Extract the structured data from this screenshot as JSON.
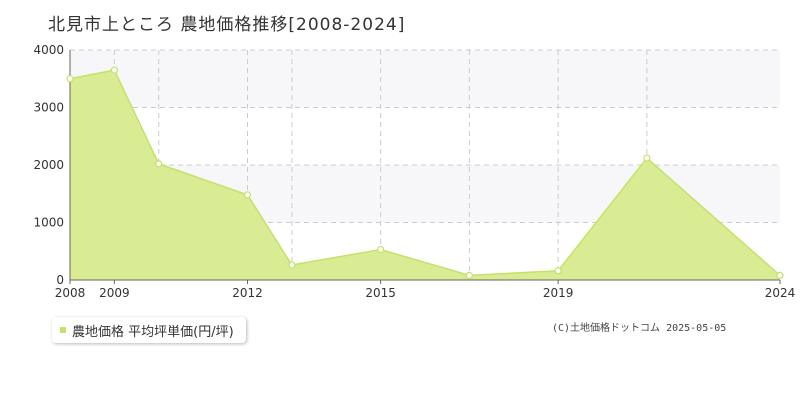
{
  "title": "北見市上ところ 農地価格推移[2008-2024]",
  "legend_label": "農地価格 平均坪単価(円/坪)",
  "copyright": "(C)土地価格ドットコム 2025-05-05",
  "colors": {
    "fill": "#d9ec93",
    "line": "#c2e368",
    "marker_fill": "#ffffff",
    "grid": "#cccccc",
    "band": "#f7f7f9",
    "axis": "#666666"
  },
  "chart_data": {
    "type": "area",
    "x": [
      2008,
      2009,
      2010,
      2012,
      2013,
      2015,
      2017,
      2019,
      2021,
      2024
    ],
    "values": [
      3500,
      3650,
      2020,
      1480,
      260,
      530,
      80,
      160,
      2120,
      80
    ],
    "xlim": [
      2008,
      2024
    ],
    "ylim": [
      0,
      4000
    ],
    "yticks": [
      0,
      1000,
      2000,
      3000,
      4000
    ],
    "xtick_labels": [
      "2008",
      "2009",
      "2012",
      "2015",
      "2019",
      "2024"
    ],
    "grid": true,
    "legend_position": "bottom-left"
  }
}
